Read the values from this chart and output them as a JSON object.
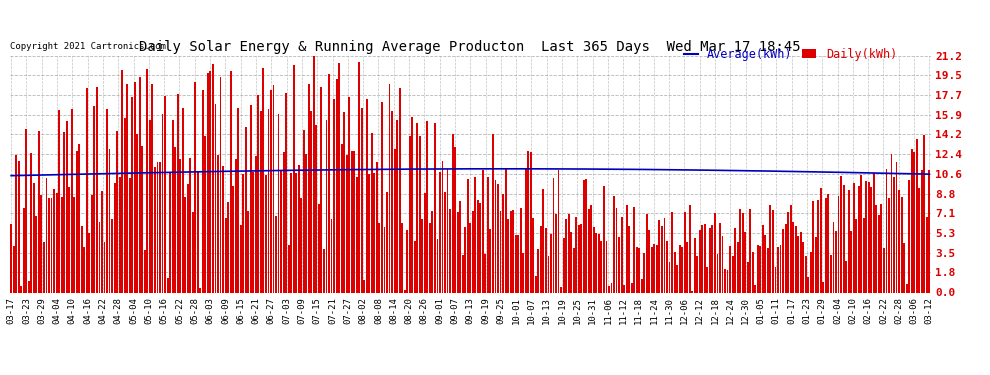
{
  "title": "Daily Solar Energy & Running Average Producton  Last 365 Days  Wed Mar 17 18:45",
  "copyright": "Copyright 2021 Cartronics.com",
  "legend_avg": "Average(kWh)",
  "legend_daily": "Daily(kWh)",
  "bar_color": "#dd0000",
  "avg_line_color": "#0000bb",
  "background_color": "#ffffff",
  "plot_bg_color": "#ffffff",
  "grid_color": "#999999",
  "title_color": "#000000",
  "right_axis_color": "#dd0000",
  "yticks": [
    0.0,
    1.8,
    3.5,
    5.3,
    7.1,
    8.8,
    10.6,
    12.4,
    14.2,
    15.9,
    17.7,
    19.5,
    21.2
  ],
  "ymax": 21.2,
  "ymin": 0.0,
  "num_bars": 365,
  "x_labels": [
    "03-17",
    "03-23",
    "03-29",
    "04-04",
    "04-10",
    "04-16",
    "04-22",
    "04-28",
    "05-04",
    "05-10",
    "05-16",
    "05-22",
    "05-28",
    "06-03",
    "06-09",
    "06-15",
    "06-21",
    "06-27",
    "07-03",
    "07-09",
    "07-15",
    "07-21",
    "07-27",
    "08-02",
    "08-08",
    "08-14",
    "08-20",
    "08-26",
    "09-01",
    "09-07",
    "09-13",
    "09-19",
    "09-25",
    "10-01",
    "10-07",
    "10-13",
    "10-19",
    "10-25",
    "10-31",
    "11-06",
    "11-12",
    "11-18",
    "11-24",
    "11-30",
    "12-06",
    "12-12",
    "12-18",
    "12-24",
    "12-30",
    "01-05",
    "01-11",
    "01-17",
    "01-23",
    "01-29",
    "02-04",
    "02-10",
    "02-16",
    "02-22",
    "02-28",
    "03-06",
    "03-12"
  ]
}
